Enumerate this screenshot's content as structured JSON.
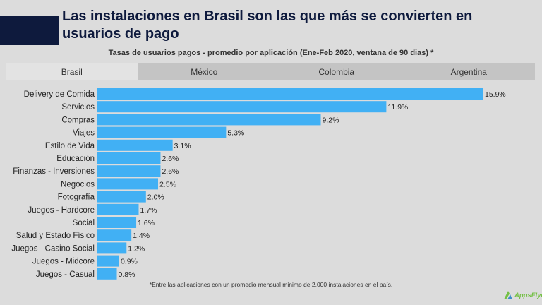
{
  "header": {
    "title": "Las instalaciones en Brasil son las que más se convierten en usuarios de pago",
    "subtitle": "Tasas de usuarios pagos - promedio por aplicación (Ene-Feb 2020, ventana de 90 dias) *"
  },
  "tabs": [
    {
      "label": "Brasil",
      "active": true
    },
    {
      "label": "México",
      "active": false
    },
    {
      "label": "Colombia",
      "active": false
    },
    {
      "label": "Argentina",
      "active": false
    }
  ],
  "footnote": "*Entre las aplicaciones con un promedio mensual minimo de 2.000 instalaciones en el país.",
  "logo": {
    "text": "AppsFlyer",
    "icon": "appsflyer-logo-icon"
  },
  "colors": {
    "bar": "#41b0f4",
    "title": "#0e1a3d",
    "accent_block": "#0e1a3d"
  },
  "chart_data": {
    "type": "bar",
    "orientation": "horizontal",
    "categories": [
      "Delivery de Comida",
      "Servicios",
      "Compras",
      "Viajes",
      "Estilo de Vida",
      "Educación",
      "Finanzas - Inversiones",
      "Negocios",
      "Fotografía",
      "Juegos - Hardcore",
      "Social",
      "Salud y Estado Físico",
      "Juegos - Casino Social",
      "Juegos - Midcore",
      "Juegos - Casual"
    ],
    "values": [
      15.9,
      11.9,
      9.2,
      5.3,
      3.1,
      2.6,
      2.6,
      2.5,
      2.0,
      1.7,
      1.6,
      1.4,
      1.2,
      0.9,
      0.8
    ],
    "value_labels": [
      "15.9%",
      "11.9%",
      "9.2%",
      "5.3%",
      "3.1%",
      "2.6%",
      "2.6%",
      "2.5%",
      "2.0%",
      "1.7%",
      "1.6%",
      "1.4%",
      "1.2%",
      "0.9%",
      "0.8%"
    ],
    "unit": "%",
    "xlim": [
      0,
      15.9
    ],
    "grid": false,
    "legend": "none"
  }
}
